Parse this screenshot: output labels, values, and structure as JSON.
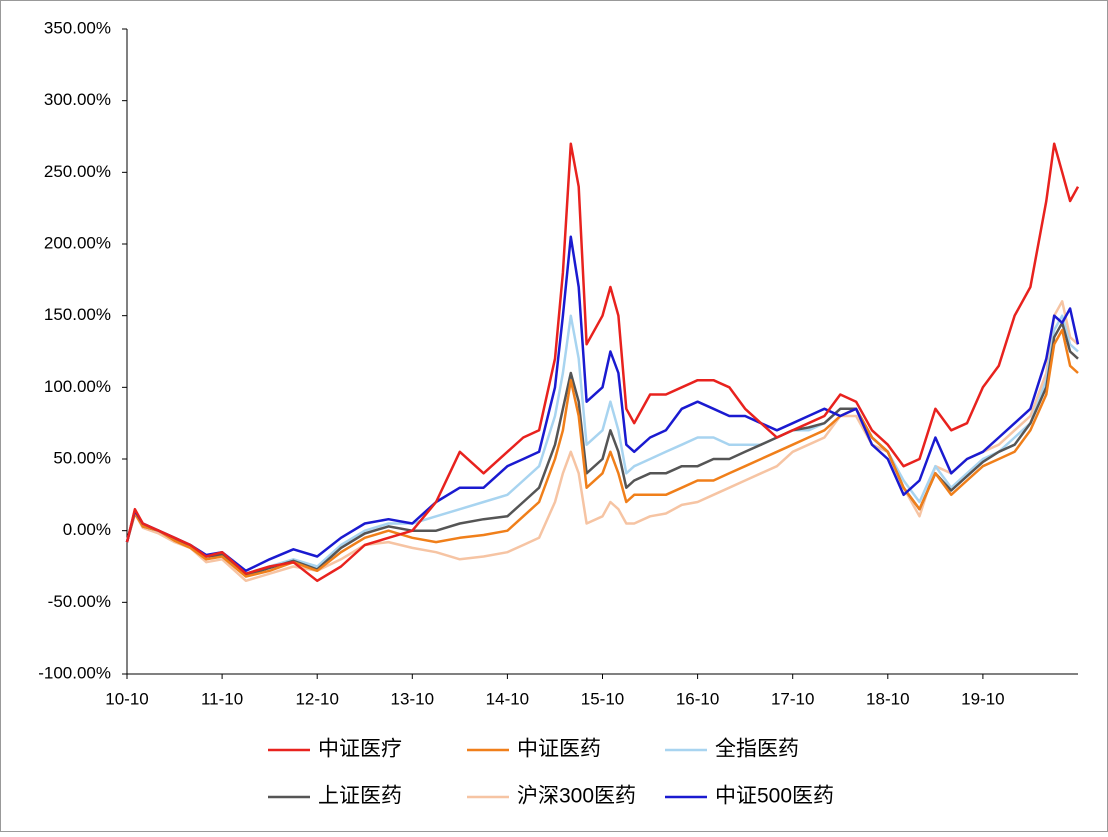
{
  "chart_data": {
    "type": "line",
    "x": [
      0,
      1,
      2,
      4,
      6,
      8,
      10,
      12,
      15,
      18,
      21,
      24,
      27,
      30,
      33,
      36,
      39,
      42,
      45,
      48,
      50,
      52,
      54,
      55,
      56,
      57,
      58,
      60,
      61,
      62,
      63,
      64,
      66,
      68,
      70,
      72,
      74,
      76,
      78,
      80,
      82,
      84,
      86,
      88,
      90,
      92,
      94,
      96,
      98,
      100,
      102,
      104,
      106,
      108,
      110,
      112,
      114,
      116,
      117,
      118,
      119,
      120
    ],
    "xlim": [
      0,
      120
    ],
    "xticks": [
      {
        "value": 0,
        "label": "10-10"
      },
      {
        "value": 12,
        "label": "11-10"
      },
      {
        "value": 24,
        "label": "12-10"
      },
      {
        "value": 36,
        "label": "13-10"
      },
      {
        "value": 48,
        "label": "14-10"
      },
      {
        "value": 60,
        "label": "15-10"
      },
      {
        "value": 72,
        "label": "16-10"
      },
      {
        "value": 84,
        "label": "17-10"
      },
      {
        "value": 96,
        "label": "18-10"
      },
      {
        "value": 108,
        "label": "19-10"
      }
    ],
    "ylim": [
      -100,
      350
    ],
    "yticks": [
      {
        "value": -100,
        "label": "-100.00%"
      },
      {
        "value": -50,
        "label": "-50.00%"
      },
      {
        "value": 0,
        "label": "0.00%"
      },
      {
        "value": 50,
        "label": "50.00%"
      },
      {
        "value": 100,
        "label": "100.00%"
      },
      {
        "value": 150,
        "label": "150.00%"
      },
      {
        "value": 200,
        "label": "200.00%"
      },
      {
        "value": 250,
        "label": "250.00%"
      },
      {
        "value": 300,
        "label": "300.00%"
      },
      {
        "value": 350,
        "label": "350.00%"
      }
    ],
    "grid": false,
    "series": [
      {
        "name": "沪深300医药",
        "color": "#f6c4a3",
        "values": [
          -8,
          12,
          2,
          -2,
          -8,
          -12,
          -22,
          -20,
          -35,
          -30,
          -25,
          -28,
          -20,
          -10,
          -8,
          -12,
          -15,
          -20,
          -18,
          -15,
          -10,
          -5,
          20,
          40,
          55,
          40,
          5,
          10,
          20,
          15,
          5,
          5,
          10,
          12,
          18,
          20,
          25,
          30,
          35,
          40,
          45,
          55,
          60,
          65,
          80,
          80,
          60,
          55,
          30,
          10,
          45,
          40,
          50,
          55,
          60,
          70,
          80,
          110,
          150,
          160,
          135,
          130
        ]
      },
      {
        "name": "全指医药",
        "color": "#a8d4f0",
        "values": [
          -8,
          14,
          4,
          0,
          -6,
          -10,
          -18,
          -16,
          -30,
          -25,
          -20,
          -25,
          -10,
          0,
          5,
          5,
          10,
          15,
          20,
          25,
          35,
          45,
          80,
          110,
          150,
          120,
          60,
          70,
          90,
          70,
          40,
          45,
          50,
          55,
          60,
          65,
          65,
          60,
          60,
          60,
          65,
          70,
          70,
          75,
          85,
          85,
          65,
          55,
          35,
          20,
          45,
          30,
          40,
          50,
          55,
          65,
          75,
          105,
          140,
          150,
          130,
          125
        ]
      },
      {
        "name": "上证医药",
        "color": "#555555",
        "values": [
          -8,
          13,
          3,
          0,
          -6,
          -10,
          -18,
          -17,
          -31,
          -26,
          -21,
          -27,
          -12,
          -2,
          3,
          0,
          0,
          5,
          8,
          10,
          20,
          30,
          60,
          85,
          110,
          90,
          40,
          50,
          70,
          55,
          30,
          35,
          40,
          40,
          45,
          45,
          50,
          50,
          55,
          60,
          65,
          70,
          72,
          75,
          85,
          85,
          65,
          55,
          30,
          15,
          40,
          28,
          38,
          48,
          55,
          60,
          75,
          100,
          135,
          145,
          125,
          120
        ]
      },
      {
        "name": "中证医药",
        "color": "#f07f1a",
        "values": [
          -8,
          12,
          3,
          0,
          -7,
          -12,
          -20,
          -18,
          -32,
          -28,
          -22,
          -28,
          -15,
          -5,
          0,
          -5,
          -8,
          -5,
          -3,
          0,
          10,
          20,
          50,
          70,
          105,
          80,
          30,
          40,
          55,
          40,
          20,
          25,
          25,
          25,
          30,
          35,
          35,
          40,
          45,
          50,
          55,
          60,
          65,
          70,
          80,
          85,
          65,
          55,
          30,
          15,
          40,
          25,
          35,
          45,
          50,
          55,
          70,
          95,
          130,
          140,
          115,
          110
        ]
      },
      {
        "name": "中证500医药",
        "color": "#1a1ad0",
        "values": [
          -8,
          14,
          5,
          0,
          -5,
          -10,
          -17,
          -15,
          -28,
          -20,
          -13,
          -18,
          -5,
          5,
          8,
          5,
          20,
          30,
          30,
          45,
          50,
          55,
          100,
          150,
          205,
          170,
          90,
          100,
          125,
          110,
          60,
          55,
          65,
          70,
          85,
          90,
          85,
          80,
          80,
          75,
          70,
          75,
          80,
          85,
          80,
          85,
          60,
          50,
          25,
          35,
          65,
          40,
          50,
          55,
          65,
          75,
          85,
          120,
          150,
          145,
          155,
          130
        ]
      },
      {
        "name": "中证医疗",
        "color": "#e8221e",
        "values": [
          -8,
          15,
          5,
          0,
          -5,
          -10,
          -18,
          -15,
          -30,
          -25,
          -22,
          -35,
          -25,
          -10,
          -5,
          0,
          20,
          55,
          40,
          55,
          65,
          70,
          120,
          180,
          270,
          240,
          130,
          150,
          170,
          150,
          85,
          75,
          95,
          95,
          100,
          105,
          105,
          100,
          85,
          75,
          65,
          70,
          75,
          80,
          95,
          90,
          70,
          60,
          45,
          50,
          85,
          70,
          75,
          100,
          115,
          150,
          170,
          230,
          270,
          250,
          230,
          240
        ]
      }
    ],
    "legend_order": [
      5,
      3,
      1,
      2,
      0,
      4
    ]
  }
}
